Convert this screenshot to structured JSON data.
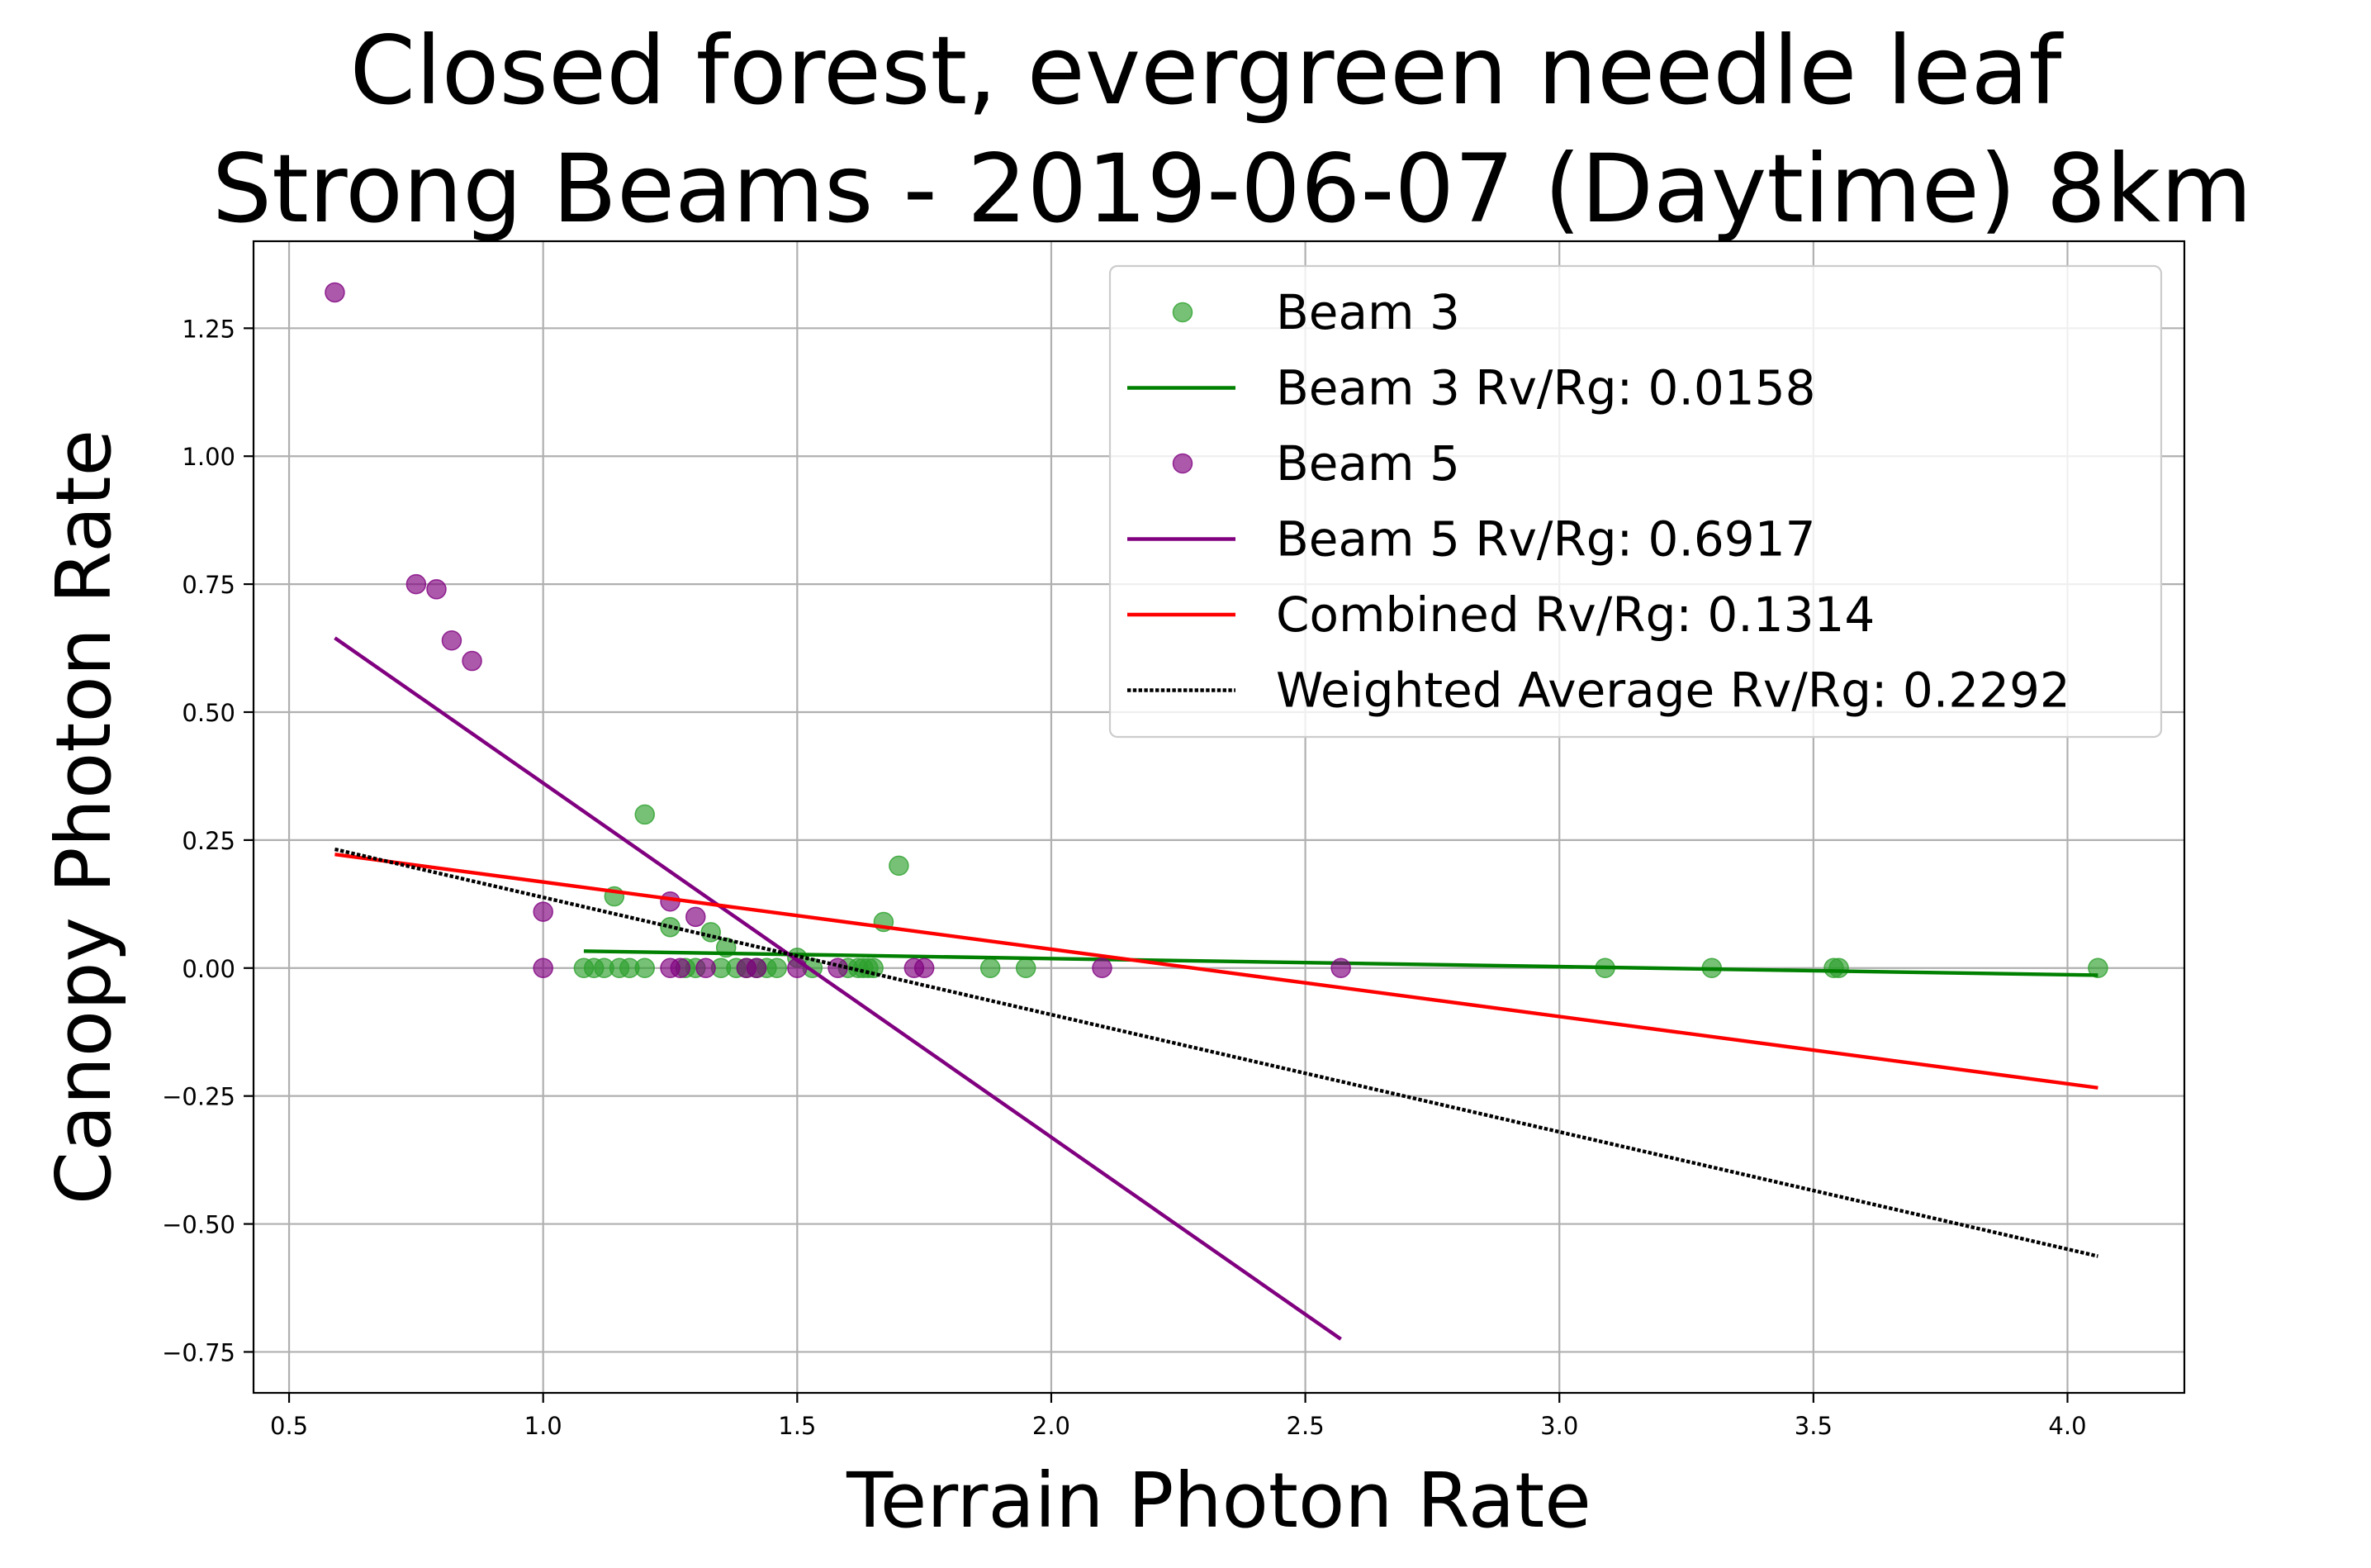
{
  "chart_data": {
    "type": "scatter",
    "title": "Closed forest, evergreen needle leaf",
    "subtitle": "Strong Beams - 2019-06-07 (Daytime) 8km",
    "xlabel": "Terrain Photon Rate",
    "ylabel": "Canopy Photon Rate",
    "xlim": [
      0.43,
      4.23
    ],
    "ylim": [
      -0.83,
      1.42
    ],
    "xticks": [
      0.5,
      1.0,
      1.5,
      2.0,
      2.5,
      3.0,
      3.5,
      4.0
    ],
    "xtick_labels": [
      "0.5",
      "1.0",
      "1.5",
      "2.0",
      "2.5",
      "3.0",
      "3.5",
      "4.0"
    ],
    "yticks": [
      -0.75,
      -0.5,
      -0.25,
      0.0,
      0.25,
      0.5,
      0.75,
      1.0,
      1.25
    ],
    "ytick_labels": [
      "−0.75",
      "−0.50",
      "−0.25",
      "0.00",
      "0.25",
      "0.50",
      "0.75",
      "1.00",
      "1.25"
    ],
    "grid": true,
    "legend_position": "top-right",
    "series": [
      {
        "kind": "scatter",
        "name": "Beam 3",
        "color": "#2ca02c",
        "points": [
          [
            1.08,
            0.0
          ],
          [
            1.1,
            0.0
          ],
          [
            1.12,
            0.0
          ],
          [
            1.14,
            0.14
          ],
          [
            1.15,
            0.0
          ],
          [
            1.17,
            0.0
          ],
          [
            1.2,
            0.3
          ],
          [
            1.2,
            0.0
          ],
          [
            1.25,
            0.08
          ],
          [
            1.28,
            0.0
          ],
          [
            1.3,
            0.0
          ],
          [
            1.33,
            0.07
          ],
          [
            1.35,
            0.0
          ],
          [
            1.36,
            0.04
          ],
          [
            1.38,
            0.0
          ],
          [
            1.4,
            0.0
          ],
          [
            1.42,
            0.0
          ],
          [
            1.44,
            0.0
          ],
          [
            1.46,
            0.0
          ],
          [
            1.5,
            0.02
          ],
          [
            1.53,
            0.0
          ],
          [
            1.6,
            0.0
          ],
          [
            1.62,
            0.0
          ],
          [
            1.63,
            0.0
          ],
          [
            1.64,
            0.0
          ],
          [
            1.65,
            0.0
          ],
          [
            1.67,
            0.09
          ],
          [
            1.7,
            0.2
          ],
          [
            1.88,
            0.0
          ],
          [
            1.95,
            0.0
          ],
          [
            3.09,
            0.0
          ],
          [
            3.3,
            0.0
          ],
          [
            3.54,
            0.0
          ],
          [
            3.55,
            0.0
          ],
          [
            4.06,
            0.0
          ]
        ]
      },
      {
        "kind": "line",
        "name": "Beam 3 Rv/Rg: 0.0158",
        "color": "#008000",
        "x": [
          1.08,
          4.06
        ],
        "y": [
          0.033,
          -0.014
        ]
      },
      {
        "kind": "scatter",
        "name": "Beam 5",
        "color": "#800080",
        "points": [
          [
            0.59,
            1.32
          ],
          [
            0.75,
            0.75
          ],
          [
            0.79,
            0.74
          ],
          [
            0.82,
            0.64
          ],
          [
            0.86,
            0.6
          ],
          [
            1.0,
            0.11
          ],
          [
            1.0,
            0.0
          ],
          [
            1.25,
            0.13
          ],
          [
            1.25,
            0.0
          ],
          [
            1.27,
            0.0
          ],
          [
            1.3,
            0.1
          ],
          [
            1.32,
            0.0
          ],
          [
            1.4,
            0.0
          ],
          [
            1.42,
            0.0
          ],
          [
            1.5,
            0.0
          ],
          [
            1.58,
            0.0
          ],
          [
            1.73,
            0.0
          ],
          [
            1.75,
            0.0
          ],
          [
            2.1,
            0.0
          ],
          [
            2.57,
            0.0
          ]
        ]
      },
      {
        "kind": "line",
        "name": "Beam 5 Rv/Rg: 0.6917",
        "color": "#800080",
        "x": [
          0.59,
          2.57
        ],
        "y": [
          0.645,
          -0.725
        ]
      },
      {
        "kind": "line",
        "name": "Combined Rv/Rg: 0.1314",
        "color": "#ff0000",
        "x": [
          0.59,
          4.06
        ],
        "y": [
          0.222,
          -0.234
        ]
      },
      {
        "kind": "line",
        "style": "dotted",
        "name": "Weighted Average Rv/Rg: 0.2292",
        "color": "#000000",
        "x": [
          0.59,
          4.06
        ],
        "y": [
          0.232,
          -0.563
        ]
      }
    ]
  }
}
